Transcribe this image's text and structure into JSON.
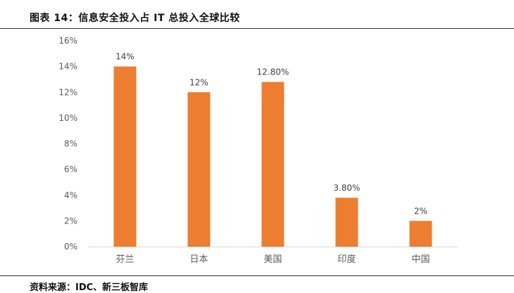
{
  "header": {
    "title": "图表 14：信息安全投入占 IT 总投入全球比较"
  },
  "footer": {
    "source": "资料来源：IDC、新三板智库"
  },
  "colors": {
    "bar": "#ED7D31",
    "axis": "#D9D9D9"
  },
  "chart_data": {
    "type": "bar",
    "categories": [
      "芬兰",
      "日本",
      "美国",
      "印度",
      "中国"
    ],
    "values": [
      14,
      12,
      12.8,
      3.8,
      2
    ],
    "data_labels": [
      "14%",
      "12%",
      "12.80%",
      "3.80%",
      "2%"
    ],
    "ylim": [
      0,
      16
    ],
    "yticks": [
      0,
      2,
      4,
      6,
      8,
      10,
      12,
      14,
      16
    ],
    "ytick_labels": [
      "0%",
      "2%",
      "4%",
      "6%",
      "8%",
      "10%",
      "12%",
      "14%",
      "16%"
    ],
    "grid": false
  }
}
